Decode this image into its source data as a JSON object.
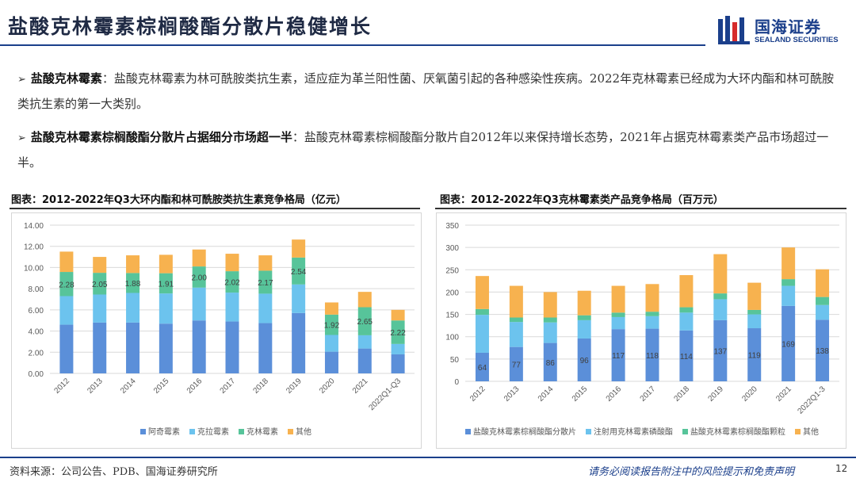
{
  "header": {
    "title": "盐酸克林霉素棕榈酸酯分散片稳健增长",
    "logo_cn": "国海证券",
    "logo_en": "SEALAND SECURITIES"
  },
  "bullets": [
    {
      "head": "盐酸克林霉素",
      "text": "：盐酸克林霉素为林可酰胺类抗生素，适应症为革兰阳性菌、厌氧菌引起的各种感染性疾病。2022年克林霉素已经成为大环内酯和林可酰胺类抗生素的第一大类别。"
    },
    {
      "head": "盐酸克林霉素棕榈酸酯分散片占据细分市场超一半",
      "text": "：盐酸克林霉素棕榈酸酯分散片自2012年以来保持增长态势，2021年占据克林霉素类产品市场超过一半。"
    }
  ],
  "footer": {
    "source": "资料来源：公司公告、PDB、国海证券研究所",
    "disclaimer": "请务必阅读报告附注中的风险提示和免责声明",
    "page": "12"
  },
  "chart_data": [
    {
      "type": "bar",
      "stacked": true,
      "title": "图表：2012-2022年Q3大环内酯和林可酰胺类抗生素竞争格局（亿元）",
      "categories": [
        "2012",
        "2013",
        "2014",
        "2015",
        "2016",
        "2017",
        "2018",
        "2019",
        "2020",
        "2021",
        "2022Q1-Q3"
      ],
      "series": [
        {
          "name": "阿奇霉素",
          "values": [
            4.6,
            4.8,
            4.8,
            4.7,
            5.0,
            4.9,
            4.75,
            5.7,
            2.05,
            2.35,
            1.8
          ]
        },
        {
          "name": "克拉霉素",
          "values": [
            2.7,
            2.65,
            2.8,
            2.85,
            3.1,
            2.73,
            2.78,
            2.7,
            1.58,
            1.25,
            0.98
          ]
        },
        {
          "name": "克林霉素",
          "values": [
            2.28,
            2.05,
            1.88,
            1.91,
            2.0,
            2.02,
            2.17,
            2.54,
            1.92,
            2.65,
            2.22
          ]
        },
        {
          "name": "其他",
          "values": [
            1.92,
            1.5,
            1.67,
            1.74,
            1.6,
            1.65,
            1.45,
            1.7,
            1.15,
            1.45,
            1.0
          ]
        }
      ],
      "labeled_series": "克林霉素",
      "ylim": [
        0,
        14
      ],
      "yticks": [
        "0.00",
        "2.00",
        "4.00",
        "6.00",
        "8.00",
        "10.00",
        "12.00",
        "14.00"
      ],
      "grid": true,
      "legend": "bottom",
      "colors": [
        "#5b8fd9",
        "#6cc3ee",
        "#57c49a",
        "#f7b24f"
      ]
    },
    {
      "type": "bar",
      "stacked": true,
      "title": "图表：2012-2022年Q3克林霉素类产品竞争格局（百万元）",
      "categories": [
        "2012",
        "2013",
        "2014",
        "2015",
        "2016",
        "2017",
        "2018",
        "2019",
        "2020",
        "2021",
        "2022Q1-3"
      ],
      "series": [
        {
          "name": "盐酸克林霉素棕榈酸酯分散片",
          "values": [
            64,
            77,
            86,
            96,
            117,
            118,
            114,
            137,
            119,
            169,
            138
          ]
        },
        {
          "name": "注射用克林霉素磷酸酯",
          "values": [
            85,
            56,
            46,
            41,
            27,
            28,
            40,
            47,
            31,
            45,
            33
          ]
        },
        {
          "name": "盐酸克林霉素棕榈酸酯颗粒",
          "values": [
            13,
            10,
            11,
            11,
            10,
            10,
            12,
            13,
            10,
            15,
            18
          ]
        },
        {
          "name": "其他",
          "values": [
            74,
            71,
            57,
            55,
            60,
            62,
            72,
            88,
            61,
            71,
            62
          ]
        }
      ],
      "labeled_series": "盐酸克林霉素棕榈酸酯分散片",
      "ylim": [
        0,
        350
      ],
      "yticks": [
        "0",
        "50",
        "100",
        "150",
        "200",
        "250",
        "300",
        "350"
      ],
      "grid": true,
      "legend": "bottom",
      "colors": [
        "#5b8fd9",
        "#6cc3ee",
        "#57c49a",
        "#f7b24f"
      ]
    }
  ]
}
